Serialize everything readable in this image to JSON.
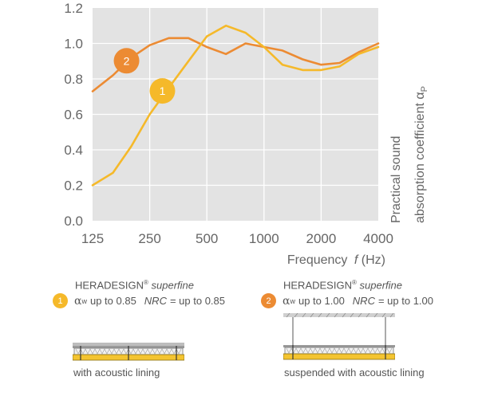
{
  "chart_data": {
    "type": "line",
    "x": [
      125,
      160,
      200,
      250,
      315,
      400,
      500,
      630,
      800,
      1000,
      1250,
      1600,
      2000,
      2500,
      3150,
      4000
    ],
    "xticks": [
      "125",
      "250",
      "500",
      "1000",
      "2000",
      "4000"
    ],
    "xtick_values": [
      125,
      250,
      500,
      1000,
      2000,
      4000
    ],
    "xscale": "log",
    "xlabel": "Frequency",
    "xlabel_italic": "f",
    "xlabel_unit": "(Hz)",
    "ylabel_line1": "Practical sound",
    "ylabel_line2": "absorption coefficient α",
    "ylabel_sub": "P",
    "ylim": [
      0,
      1.2
    ],
    "yticks": [
      "0.0",
      "0.2",
      "0.4",
      "0.6",
      "0.8",
      "1.0",
      "1.2"
    ],
    "ytick_values": [
      0,
      0.2,
      0.4,
      0.6,
      0.8,
      1.0,
      1.2
    ],
    "grid": true,
    "series": [
      {
        "marker": "1",
        "color": "#f5b92a",
        "values": [
          0.2,
          0.27,
          0.42,
          0.6,
          0.75,
          0.9,
          1.04,
          1.1,
          1.06,
          0.98,
          0.88,
          0.85,
          0.85,
          0.87,
          0.94,
          0.98
        ]
      },
      {
        "marker": "2",
        "color": "#ec8b33",
        "values": [
          0.73,
          0.82,
          0.92,
          0.99,
          1.03,
          1.03,
          0.98,
          0.94,
          1.0,
          0.98,
          0.96,
          0.91,
          0.88,
          0.89,
          0.95,
          1.0
        ]
      }
    ]
  },
  "legend": [
    {
      "badge": "1",
      "color": "#f5b92a",
      "brand": "HERADESIGN",
      "reg": "®",
      "product": "superfine",
      "alpha_symbol": "α",
      "alpha_sub": "w",
      "alpha_text": "up to 0.85",
      "nrc_label": "NRC",
      "nrc_text": "= up to 0.85",
      "caption": "with acoustic lining"
    },
    {
      "badge": "2",
      "color": "#ec8b33",
      "brand": "HERADESIGN",
      "reg": "®",
      "product": "superfine",
      "alpha_symbol": "α",
      "alpha_sub": "w",
      "alpha_text": "up to 1.00",
      "nrc_label": "NRC",
      "nrc_text": "= up to 1.00",
      "caption": "suspended with acoustic lining"
    }
  ]
}
